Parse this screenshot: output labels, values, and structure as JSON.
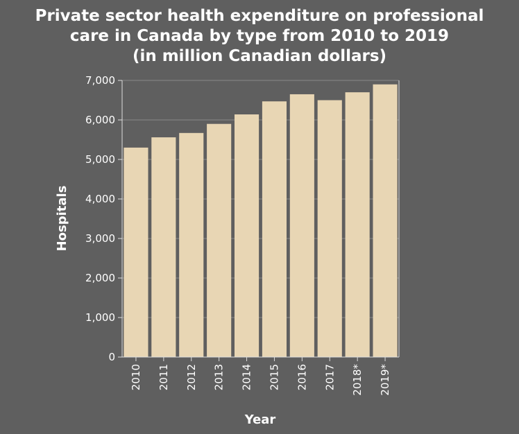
{
  "chart_data": {
    "type": "bar",
    "title": "Private sector health expenditure on professional care in Canada by type from 2010 to 2019 (in million Canadian dollars)",
    "title_lines": [
      "Private sector health expenditure on professional",
      "care in Canada by type from 2010 to 2019",
      "(in million Canadian dollars)"
    ],
    "xlabel": "Year",
    "ylabel": "Hospitals",
    "categories": [
      "2010",
      "2011",
      "2012",
      "2013",
      "2014",
      "2015",
      "2016",
      "2017",
      "2018*",
      "2019*"
    ],
    "values": [
      5300,
      5560,
      5670,
      5900,
      6140,
      6470,
      6650,
      6500,
      6700,
      6900
    ],
    "ylim": [
      0,
      7000
    ],
    "yticks": [
      0,
      1000,
      2000,
      3000,
      4000,
      5000,
      6000,
      7000
    ],
    "ytick_labels": [
      "0",
      "1,000",
      "2,000",
      "3,000",
      "4,000",
      "5,000",
      "6,000",
      "7,000"
    ],
    "grid": true,
    "legend": "none",
    "colors": {
      "background": "#5f5f5f",
      "bar": "#e8d6b4",
      "text": "#ffffff"
    }
  }
}
